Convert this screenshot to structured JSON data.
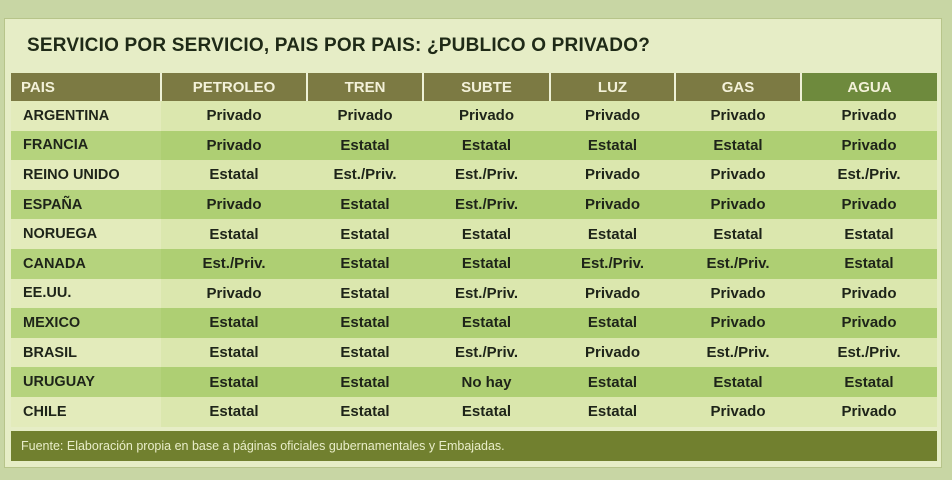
{
  "title": "SERVICIO POR SERVICIO, PAIS POR PAIS: ¿PUBLICO O PRIVADO?",
  "columns": [
    "PAIS",
    "PETROLEO",
    "TREN",
    "SUBTE",
    "LUZ",
    "GAS",
    "AGUA"
  ],
  "rows": [
    [
      "ARGENTINA",
      "Privado",
      "Privado",
      "Privado",
      "Privado",
      "Privado",
      "Privado"
    ],
    [
      "FRANCIA",
      "Privado",
      "Estatal",
      "Estatal",
      "Estatal",
      "Estatal",
      "Privado"
    ],
    [
      "REINO UNIDO",
      "Estatal",
      "Est./Priv.",
      "Est./Priv.",
      "Privado",
      "Privado",
      "Est./Priv."
    ],
    [
      "ESPAÑA",
      "Privado",
      "Estatal",
      "Est./Priv.",
      "Privado",
      "Privado",
      "Privado"
    ],
    [
      "NORUEGA",
      "Estatal",
      "Estatal",
      "Estatal",
      "Estatal",
      "Estatal",
      "Estatal"
    ],
    [
      "CANADA",
      "Est./Priv.",
      "Estatal",
      "Estatal",
      "Est./Priv.",
      "Est./Priv.",
      "Estatal"
    ],
    [
      "EE.UU.",
      "Privado",
      "Estatal",
      "Est./Priv.",
      "Privado",
      "Privado",
      "Privado"
    ],
    [
      "MEXICO",
      "Estatal",
      "Estatal",
      "Estatal",
      "Estatal",
      "Privado",
      "Privado"
    ],
    [
      "BRASIL",
      "Estatal",
      "Estatal",
      "Est./Priv.",
      "Privado",
      "Est./Priv.",
      "Est./Priv."
    ],
    [
      "URUGUAY",
      "Estatal",
      "Estatal",
      "No hay",
      "Estatal",
      "Estatal",
      "Estatal"
    ],
    [
      "CHILE",
      "Estatal",
      "Estatal",
      "Estatal",
      "Estatal",
      "Privado",
      "Privado"
    ]
  ],
  "footer": "Fuente: Elaboración propia en base a páginas oficiales gubernamentales y Embajadas.",
  "colors": {
    "header_bg": "#7c7a43",
    "header_agua_bg": "#6e8a3d",
    "row_light": "#dbe7ae",
    "row_dark": "#aecf73",
    "footer_bg": "#71802f"
  }
}
